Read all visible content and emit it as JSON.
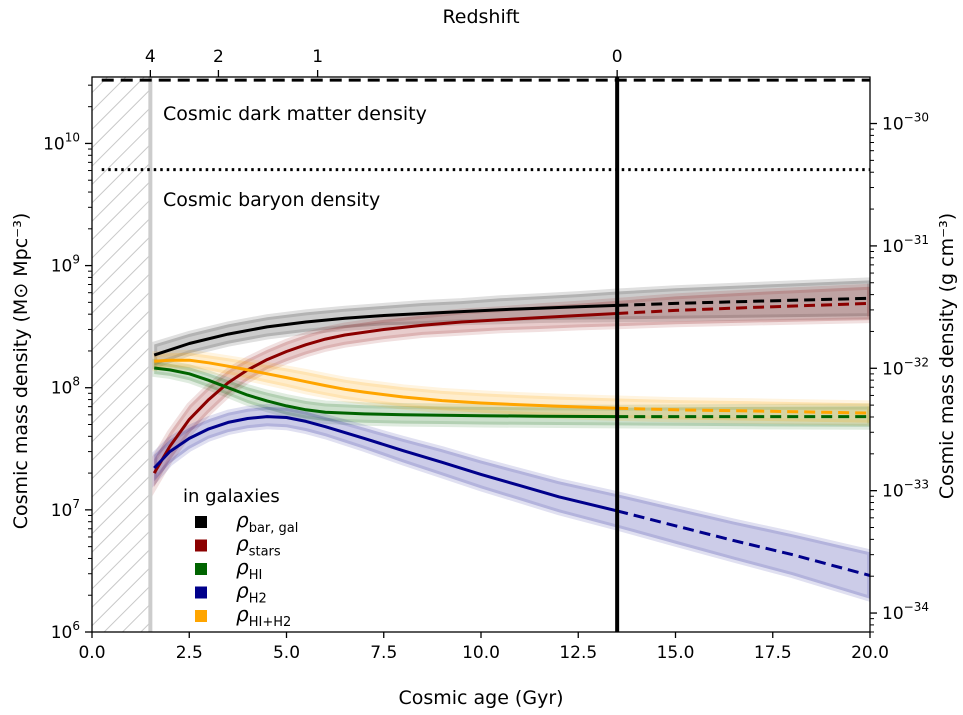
{
  "chart_data": {
    "type": "line",
    "xlabel": "Cosmic age (Gyr)",
    "ylabel_left": "Cosmic mass density (M⊙ Mpc⁻³)",
    "ylabel_right": "Cosmic mass density (g cm⁻³)",
    "top_axis_label": "Redshift",
    "y_scale": "log",
    "xlim": [
      0.0,
      20.0
    ],
    "ylim": [
      1000000,
      35000000000
    ],
    "right_ylim_g_cm3": [
      7e-35,
      2.4e-30
    ],
    "x_ticks": [
      {
        "value": 0.0,
        "label": "0.0"
      },
      {
        "value": 2.5,
        "label": "2.5"
      },
      {
        "value": 5.0,
        "label": "5.0"
      },
      {
        "value": 7.5,
        "label": "7.5"
      },
      {
        "value": 10.0,
        "label": "10.0"
      },
      {
        "value": 12.5,
        "label": "12.5"
      },
      {
        "value": 15.0,
        "label": "15.0"
      },
      {
        "value": 17.5,
        "label": "17.5"
      },
      {
        "value": 20.0,
        "label": "20.0"
      }
    ],
    "y_ticks_left": [
      {
        "value": 1000000,
        "base": "10",
        "exp": "6"
      },
      {
        "value": 10000000,
        "base": "10",
        "exp": "7"
      },
      {
        "value": 100000000,
        "base": "10",
        "exp": "8"
      },
      {
        "value": 1000000000,
        "base": "10",
        "exp": "9"
      },
      {
        "value": 10000000000,
        "base": "10",
        "exp": "10"
      }
    ],
    "y_ticks_right": [
      {
        "value": 1e-34,
        "base": "10",
        "exp": "−34"
      },
      {
        "value": 1e-33,
        "base": "10",
        "exp": "−33"
      },
      {
        "value": 1e-32,
        "base": "10",
        "exp": "−32"
      },
      {
        "value": 1e-31,
        "base": "10",
        "exp": "−31"
      },
      {
        "value": 1e-30,
        "base": "10",
        "exp": "−30"
      }
    ],
    "redshift_ticks": [
      {
        "age": 1.5,
        "label": "4"
      },
      {
        "age": 3.25,
        "label": "2"
      },
      {
        "age": 5.8,
        "label": "1"
      },
      {
        "age": 13.5,
        "label": "0"
      }
    ],
    "present_day_age": 13.5,
    "excluded_region": [
      0.0,
      1.5
    ],
    "reference_lines": [
      {
        "name": "Cosmic dark matter density",
        "value": 33000000000,
        "style": "dashed"
      },
      {
        "name": "Cosmic baryon density",
        "value": 6100000000,
        "style": "dotted"
      }
    ],
    "legend": {
      "title": "in galaxies",
      "position": "lower-left"
    },
    "series": [
      {
        "key": "bar_gal",
        "symbol": "ρ",
        "sub": "bar, gal",
        "color": "#000000",
        "x": [
          1.6,
          2.5,
          3.5,
          4.5,
          5.5,
          6.5,
          7.5,
          8.5,
          9.5,
          10.5,
          11.5,
          12.5,
          13.5,
          15.0,
          17.0,
          20.0
        ],
        "y": [
          185000000,
          230000000,
          275000000,
          315000000,
          345000000,
          370000000,
          390000000,
          405000000,
          420000000,
          435000000,
          448000000,
          460000000,
          472000000,
          490000000,
          510000000,
          540000000
        ],
        "band": [
          1.22,
          1.2,
          1.2,
          1.2,
          1.2,
          1.2,
          1.2,
          1.22,
          1.22,
          1.24,
          1.25,
          1.27,
          1.3,
          1.33,
          1.36,
          1.4
        ]
      },
      {
        "key": "stars",
        "symbol": "ρ",
        "sub": "stars",
        "color": "#8b0000",
        "x": [
          1.6,
          2.0,
          2.5,
          3.0,
          3.5,
          4.0,
          4.5,
          5.0,
          5.5,
          6.0,
          6.5,
          7.5,
          8.5,
          9.5,
          10.5,
          11.5,
          12.5,
          13.5,
          15.0,
          17.0,
          20.0
        ],
        "y": [
          20000000,
          33000000,
          55000000,
          80000000,
          110000000,
          140000000,
          170000000,
          198000000,
          225000000,
          250000000,
          270000000,
          300000000,
          325000000,
          345000000,
          360000000,
          375000000,
          390000000,
          405000000,
          430000000,
          455000000,
          490000000
        ],
        "band": [
          1.3,
          1.3,
          1.3,
          1.28,
          1.25,
          1.22,
          1.2,
          1.2,
          1.2,
          1.2,
          1.2,
          1.2,
          1.2,
          1.22,
          1.22,
          1.24,
          1.25,
          1.27,
          1.3,
          1.33,
          1.37
        ]
      },
      {
        "key": "HI",
        "symbol": "ρ",
        "sub": "HI",
        "color": "#006400",
        "x": [
          1.6,
          2.0,
          2.5,
          3.0,
          3.5,
          4.0,
          4.5,
          5.0,
          5.5,
          6.0,
          7.0,
          8.0,
          9.0,
          10.0,
          11.5,
          13.5,
          15.0,
          17.0,
          20.0
        ],
        "y": [
          145000000,
          140000000,
          130000000,
          115000000,
          100000000,
          87000000,
          78000000,
          71000000,
          66000000,
          63000000,
          61000000,
          60000000,
          59500000,
          59000000,
          58500000,
          58000000,
          58000000,
          58000000,
          58000000
        ],
        "band": [
          1.12,
          1.12,
          1.13,
          1.14,
          1.15,
          1.16,
          1.17,
          1.18,
          1.18,
          1.18,
          1.18,
          1.18,
          1.18,
          1.18,
          1.18,
          1.18,
          1.19,
          1.2,
          1.21
        ]
      },
      {
        "key": "H2",
        "symbol": "ρ",
        "sub": "H2",
        "color": "#00008b",
        "x": [
          1.6,
          2.0,
          2.5,
          3.0,
          3.5,
          4.0,
          4.5,
          5.0,
          5.5,
          6.0,
          7.0,
          8.0,
          9.0,
          10.0,
          11.0,
          12.0,
          13.5,
          15.0,
          16.5,
          18.0,
          20.0
        ],
        "y": [
          22000000,
          30000000,
          38500000,
          46000000,
          52000000,
          56000000,
          58000000,
          57000000,
          53000000,
          48000000,
          38500000,
          30500000,
          24500000,
          19500000,
          15800000,
          12800000,
          9800000,
          7400000,
          5600000,
          4300000,
          2900000
        ],
        "band": [
          1.28,
          1.25,
          1.22,
          1.2,
          1.2,
          1.2,
          1.2,
          1.2,
          1.2,
          1.2,
          1.22,
          1.25,
          1.28,
          1.3,
          1.32,
          1.34,
          1.37,
          1.4,
          1.43,
          1.47,
          1.55
        ]
      },
      {
        "key": "HI+H2",
        "symbol": "ρ",
        "sub": "HI+H2",
        "color": "#ffa500",
        "x": [
          1.6,
          2.0,
          2.5,
          3.0,
          3.5,
          4.0,
          4.5,
          5.0,
          5.5,
          6.0,
          6.5,
          7.0,
          8.0,
          9.0,
          10.0,
          11.0,
          12.0,
          13.5,
          15.0,
          17.0,
          20.0
        ],
        "y": [
          165000000,
          168000000,
          168000000,
          160000000,
          150000000,
          140000000,
          130000000,
          121000000,
          112000000,
          104000000,
          97000000,
          92000000,
          84000000,
          78500000,
          75000000,
          72500000,
          70500000,
          68000000,
          66000000,
          64500000,
          62000000
        ],
        "band": [
          1.14,
          1.14,
          1.15,
          1.15,
          1.16,
          1.17,
          1.18,
          1.19,
          1.2,
          1.2,
          1.2,
          1.2,
          1.2,
          1.2,
          1.2,
          1.2,
          1.2,
          1.2,
          1.2,
          1.2,
          1.2
        ]
      }
    ]
  },
  "annotations": {
    "dark_matter": "Cosmic dark matter density",
    "baryon": "Cosmic baryon density"
  }
}
